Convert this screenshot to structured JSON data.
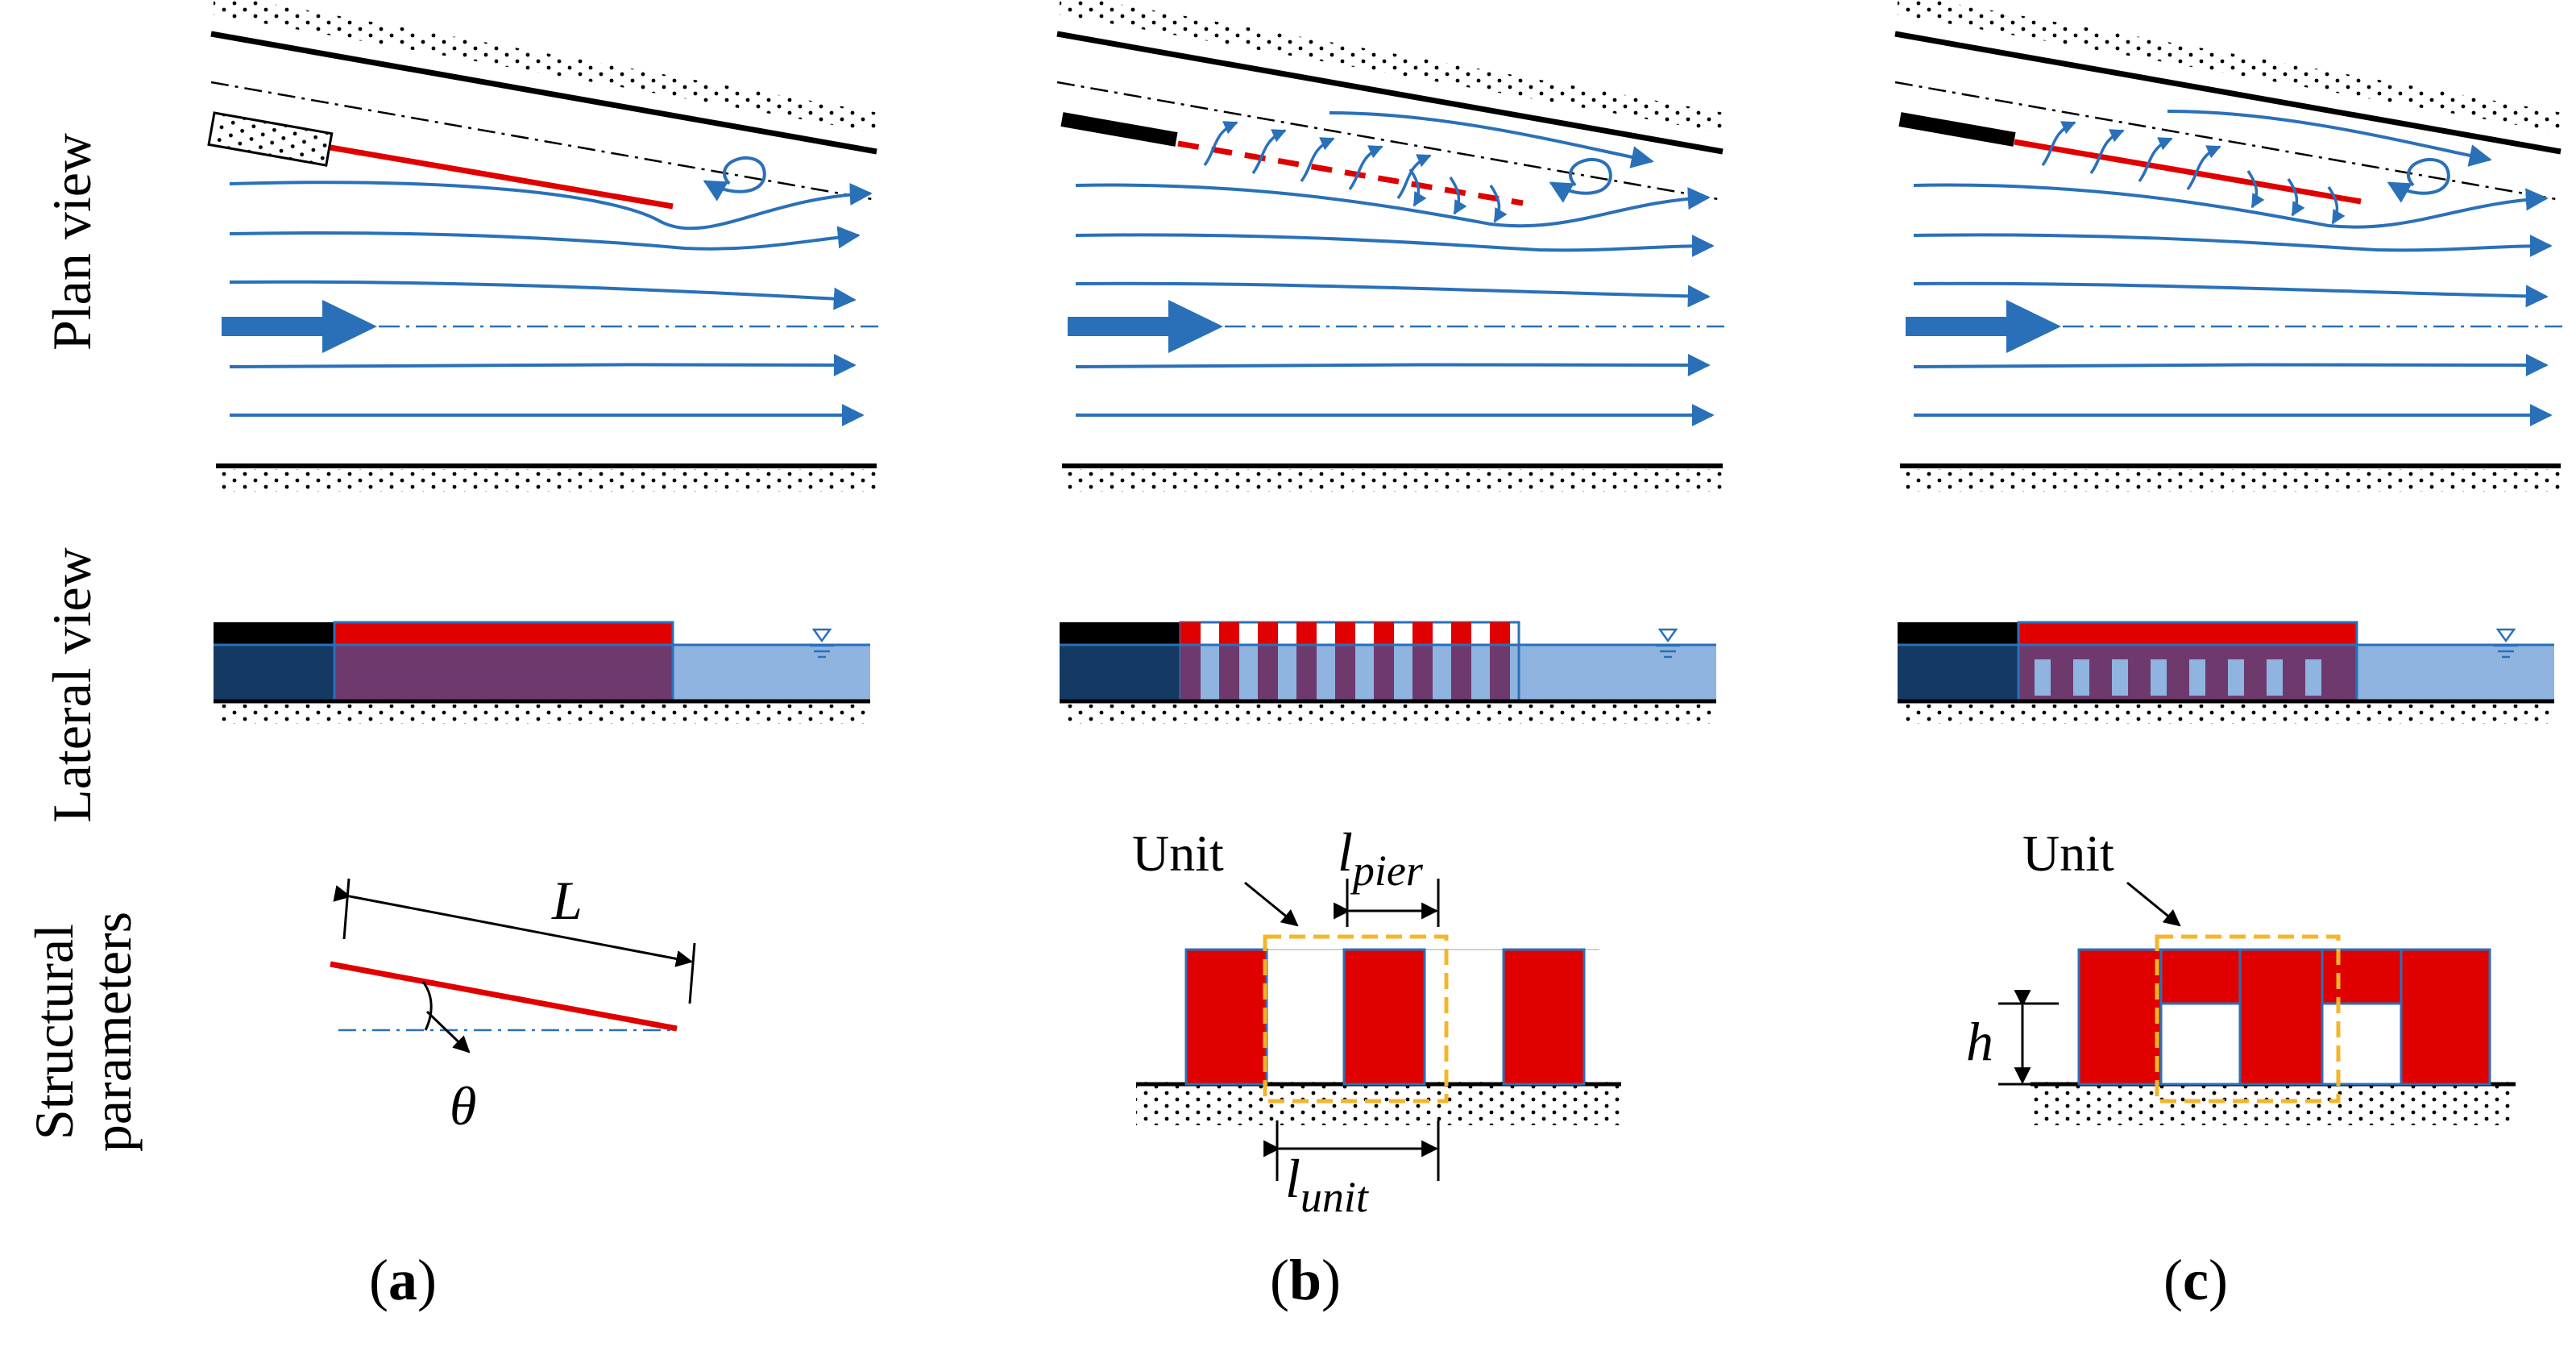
{
  "figure": {
    "row_labels": {
      "plan": "Plan view",
      "lateral": "Lateral view",
      "structural_line1": "Structural",
      "structural_line2": "parameters"
    },
    "panels": [
      {
        "id": "a",
        "caption_open": "(",
        "caption_letter": "a",
        "caption_close": ")",
        "type": "solid spur dike"
      },
      {
        "id": "b",
        "caption_open": "(",
        "caption_letter": "b",
        "caption_close": ")",
        "type": "permeable pile dike"
      },
      {
        "id": "c",
        "caption_open": "(",
        "caption_letter": "c",
        "caption_close": ")",
        "type": "bottom-permeable dike"
      }
    ],
    "parameters": {
      "length": "L",
      "angle": "θ",
      "unit": "Unit",
      "pier_base": "l",
      "pier_sub": "pier",
      "unit_base": "l",
      "unit_sub": "unit",
      "height": "h"
    },
    "colors": {
      "structure": "#e00000",
      "flow": "#2a70b9",
      "water": "#8fb4df",
      "water_dark": "#143a63",
      "overlap": "#6e3a6e",
      "unit_box": "#f5b52a",
      "bank": "#000000"
    },
    "icons": [
      "flow-arrow-icon",
      "eddy-icon",
      "water-level-icon"
    ]
  }
}
